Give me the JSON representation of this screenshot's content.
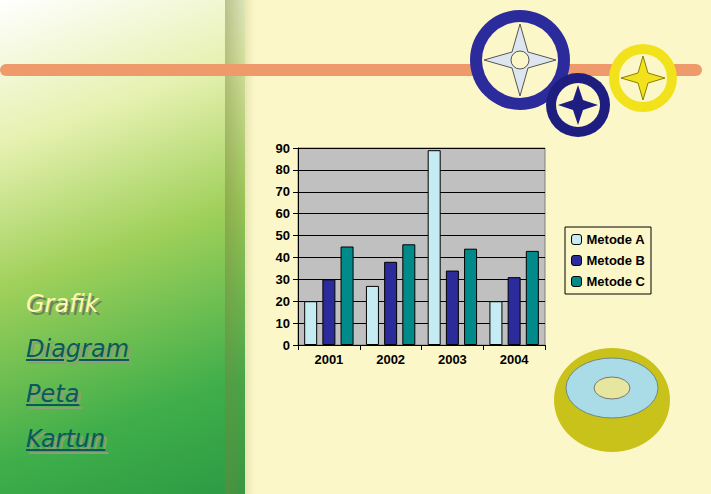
{
  "chart_data": {
    "type": "bar",
    "categories": [
      "2001",
      "2002",
      "2003",
      "2004"
    ],
    "series": [
      {
        "name": "Metode A",
        "color": "#c6ecf3",
        "values": [
          20,
          27,
          89,
          20
        ]
      },
      {
        "name": "Metode B",
        "color": "#2b2b9c",
        "values": [
          30,
          38,
          34,
          31
        ]
      },
      {
        "name": "Metode C",
        "color": "#008a8a",
        "values": [
          45,
          46,
          44,
          43
        ]
      }
    ],
    "ylim": [
      0,
      90
    ],
    "yticks": [
      0,
      10,
      20,
      30,
      40,
      50,
      60,
      70,
      80,
      90
    ],
    "grid": true,
    "legend": "right"
  },
  "sidebar": [
    "Grafik",
    "Diagram",
    "Peta",
    "Kartun"
  ]
}
